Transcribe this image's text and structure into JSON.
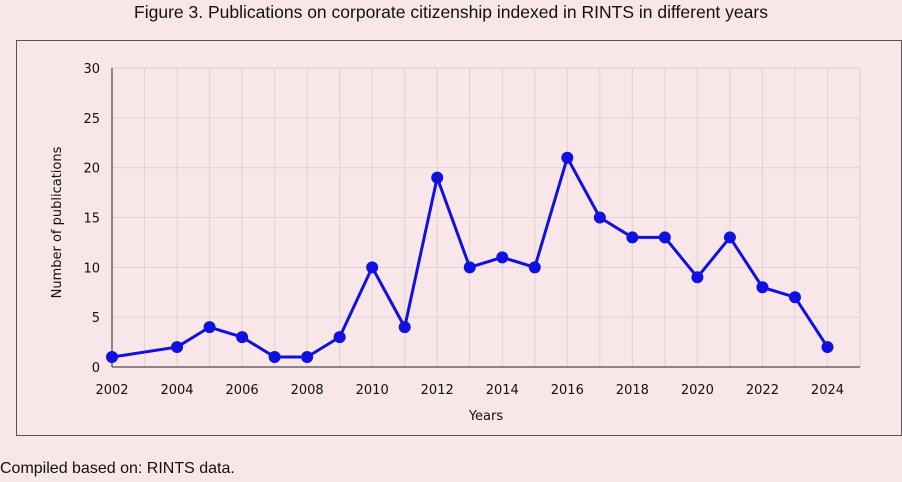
{
  "figure_title": "Figure 3. Publications on corporate citizenship indexed in RINTS in different years",
  "caption": "Compiled based on: RINTS data.",
  "colors": {
    "series": "#1010e0",
    "grid": "#e0d3d5",
    "axis": "#222222",
    "background": "#f8e6e8"
  },
  "chart_data": {
    "type": "line",
    "title": "Figure 3. Publications on corporate citizenship indexed in RINTS in different years",
    "xlabel": "Years",
    "ylabel": "Number of publications",
    "x": [
      2002,
      2004,
      2005,
      2006,
      2007,
      2008,
      2009,
      2010,
      2011,
      2012,
      2013,
      2014,
      2015,
      2016,
      2017,
      2018,
      2019,
      2020,
      2021,
      2022,
      2023,
      2024
    ],
    "series": [
      {
        "values": [
          1,
          2,
          4,
          3,
          1,
          1,
          3,
          10,
          4,
          19,
          10,
          11,
          10,
          21,
          15,
          13,
          13,
          9,
          13,
          8,
          7,
          2
        ]
      }
    ],
    "xlim": [
      2002,
      2025
    ],
    "ylim": [
      0,
      30
    ],
    "xticks": [
      2002,
      2004,
      2006,
      2008,
      2010,
      2012,
      2014,
      2016,
      2018,
      2020,
      2022,
      2024
    ],
    "yticks": [
      0,
      5,
      10,
      15,
      20,
      25,
      30
    ],
    "grid": true,
    "legend": "none"
  }
}
